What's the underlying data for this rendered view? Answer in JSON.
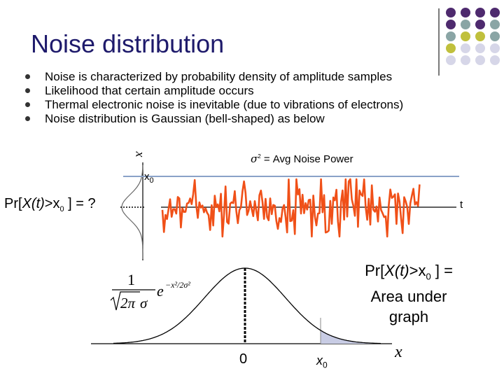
{
  "slide": {
    "title": "Noise distribution",
    "bullets": [
      "Noise is characterized by probability density of amplitude samples",
      "Likelihood that certain amplitude occurs",
      "Thermal electronic noise is inevitable (due to vibrations of electrons)",
      "Noise distribution is Gaussian (bell-shaped) as below"
    ]
  },
  "top_plot": {
    "x_axis_label": "x",
    "sigma_symbol": "σ",
    "sigma_superscript": "2",
    "sigma_label": " = Avg Noise Power",
    "threshold_base": "x",
    "threshold_sub": "0",
    "time_label": "t",
    "question_prefix": "Pr[",
    "question_var": "X(t)",
    "question_mid": ">x",
    "question_sub": "0",
    "question_suffix": " ] = ?",
    "noise_color": "#f05018",
    "threshold_color": "#8aa2c8"
  },
  "bottom_plot": {
    "formula": {
      "numerator": "1",
      "root_content": "2π",
      "sigma": "σ",
      "exp_base": "e",
      "exp_exponent": "−x²/2σ²"
    },
    "answer_line1_prefix": "Pr[",
    "answer_line1_var": "X(t)",
    "answer_line1_mid": ">x",
    "answer_line1_sub": "0",
    "answer_line1_suffix": " ] =",
    "answer_line2": "Area under",
    "answer_line3": "graph",
    "zero_label": "0",
    "threshold_base": "x",
    "threshold_sub": "0",
    "axis_label": "x",
    "tail_fill_color": "#c8cce4"
  },
  "decoration": {
    "dot_colors": [
      "#4e2a6e",
      "#8aa5a5",
      "#c0c03c",
      "#d6d6e8"
    ]
  }
}
